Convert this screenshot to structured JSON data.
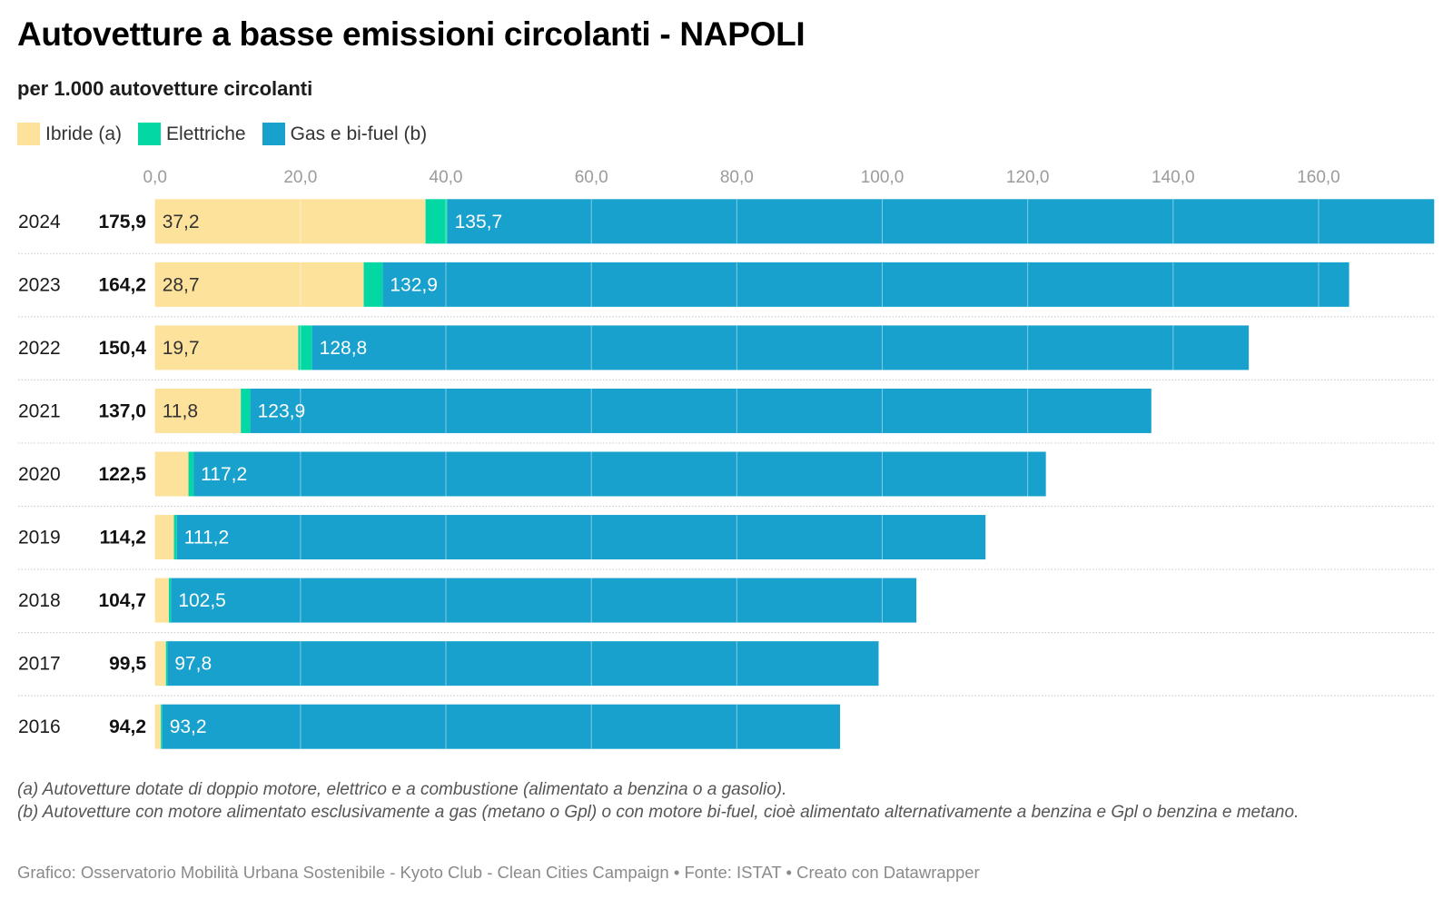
{
  "header": {
    "title": "Autovetture a basse emissioni circolanti - NAPOLI",
    "subtitle": "per 1.000 autovetture circolanti"
  },
  "legend": [
    {
      "label": "Ibride (a)",
      "color": "#FDE29C"
    },
    {
      "label": "Elettriche",
      "color": "#03D8A4"
    },
    {
      "label": "Gas e bi-fuel (b)",
      "color": "#18A1CD"
    }
  ],
  "chart_data": {
    "type": "bar",
    "orientation": "horizontal",
    "stacked": true,
    "title": "Autovetture a basse emissioni circolanti - NAPOLI",
    "subtitle": "per 1.000 autovetture circolanti",
    "categories": [
      "2024",
      "2023",
      "2022",
      "2021",
      "2020",
      "2019",
      "2018",
      "2017",
      "2016"
    ],
    "totals": [
      175.9,
      164.2,
      150.4,
      137.0,
      122.5,
      114.2,
      104.7,
      99.5,
      94.2
    ],
    "totals_labels": [
      "175,9",
      "164,2",
      "150,4",
      "137,0",
      "122,5",
      "114,2",
      "104,7",
      "99,5",
      "94,2"
    ],
    "series": [
      {
        "name": "Ibride (a)",
        "color": "#FDE29C",
        "label_color": "#333333",
        "values": [
          37.2,
          28.7,
          19.7,
          11.8,
          4.6,
          2.6,
          1.9,
          1.5,
          0.8
        ],
        "labels": [
          "37,2",
          "28,7",
          "19,7",
          "11,8",
          "",
          "",
          "",
          "",
          ""
        ]
      },
      {
        "name": "Elettriche",
        "color": "#03D8A4",
        "label_color": "#333333",
        "values": [
          3.0,
          2.6,
          1.9,
          1.3,
          0.7,
          0.4,
          0.3,
          0.2,
          0.2
        ],
        "labels": [
          "",
          "",
          "",
          "",
          "",
          "",
          "",
          "",
          ""
        ]
      },
      {
        "name": "Gas e bi-fuel (b)",
        "color": "#18A1CD",
        "label_color": "#ffffff",
        "values": [
          135.7,
          132.9,
          128.8,
          123.9,
          117.2,
          111.2,
          102.5,
          97.8,
          93.2
        ],
        "labels": [
          "135,7",
          "132,9",
          "128,8",
          "123,9",
          "117,2",
          "111,2",
          "102,5",
          "97,8",
          "93,2"
        ]
      }
    ],
    "xlim": [
      0,
      175.9
    ],
    "xticks": [
      0,
      20,
      40,
      60,
      80,
      100,
      120,
      140,
      160
    ],
    "xtick_labels": [
      "0,0",
      "20,0",
      "40,0",
      "60,0",
      "80,0",
      "100,0",
      "120,0",
      "140,0",
      "160,0"
    ],
    "xaxis_position": "top",
    "grid": true,
    "legend_position": "top-left",
    "xlabel": "",
    "ylabel": ""
  },
  "footnotes": [
    "(a) Autovetture dotate di doppio motore, elettrico e a combustione (alimentato a benzina o a gasolio).",
    "(b) Autovetture con motore alimentato esclusivamente a gas (metano o Gpl) o con motore bi-fuel, cioè alimentato alternativamente a benzina e Gpl o benzina e metano."
  ],
  "credit": "Grafico: Osservatorio Mobilità Urbana Sostenibile - Kyoto Club - Clean Cities Campaign • Fonte: ISTAT • Creato con Datawrapper"
}
